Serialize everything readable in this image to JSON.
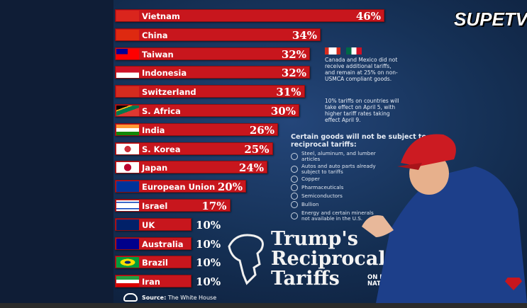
{
  "chart_data": {
    "type": "bar",
    "orientation": "horizontal",
    "categories": [
      "Vietnam",
      "China",
      "Taiwan",
      "Indonesia",
      "Switzerland",
      "S. Africa",
      "India",
      "S. Korea",
      "Japan",
      "European Union",
      "Israel",
      "UK",
      "Australia",
      "Brazil",
      "Iran"
    ],
    "values": [
      46,
      34,
      32,
      32,
      31,
      30,
      26,
      25,
      24,
      20,
      17,
      10,
      10,
      10,
      10
    ],
    "labels": [
      "46%",
      "34%",
      "32%",
      "32%",
      "31%",
      "30%",
      "26%",
      "25%",
      "24%",
      "20%",
      "17%",
      "10%",
      "10%",
      "10%",
      "10%"
    ],
    "bar_color": "#c8161d",
    "title": "Trump's Reciprocal Tariffs",
    "subtitle": "ON MAJOR NATIONS"
  },
  "notes": {
    "canada_mexico": "Canada and Mexico did not receive additional tariffs, and remain at 25% on non-USMCA compliant goods.",
    "timing": "10% tariffs on countries will take effect on April 5, with higher tariff rates taking effect April 9.",
    "exempt_heading": "Certain goods will not be subject to reciprocal tariffs:",
    "exempt": [
      "Steel, aluminum, and lumber articles",
      "Autos and auto parts already subject to tariffs",
      "Copper",
      "Pharmaceuticals",
      "Semiconductors",
      "Bullion",
      "Energy and certain minerals not available in the U.S."
    ]
  },
  "source": {
    "label": "Source:",
    "value": "The White House"
  },
  "logo": "SUPETV"
}
